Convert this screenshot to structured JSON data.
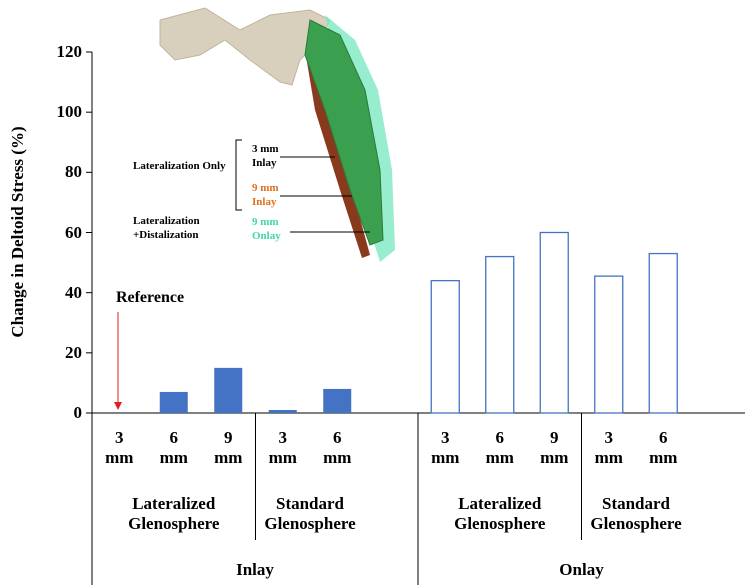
{
  "chart_data": {
    "type": "bar",
    "ylabel": "Change in Deltoid Stress (%)",
    "ylim": [
      0,
      120
    ],
    "yticks": [
      0,
      20,
      40,
      60,
      80,
      100,
      120
    ],
    "groups": [
      {
        "name": "Inlay",
        "style": "filled",
        "color": "#4472c4",
        "subgroups": [
          {
            "name": "Lateralized Glenosphere",
            "categories": [
              "3 mm",
              "6 mm",
              "9 mm"
            ],
            "values": [
              0,
              7,
              15
            ]
          },
          {
            "name": "Standard Glenosphere",
            "categories": [
              "3 mm",
              "6 mm"
            ],
            "values": [
              1,
              8
            ]
          }
        ]
      },
      {
        "name": "Onlay",
        "style": "outline",
        "color": "#4472c4",
        "subgroups": [
          {
            "name": "Lateralized Glenosphere",
            "categories": [
              "3 mm",
              "6 mm",
              "9 mm"
            ],
            "values": [
              44,
              52,
              60
            ]
          },
          {
            "name": "Standard Glenosphere",
            "categories": [
              "3 mm",
              "6 mm"
            ],
            "values": [
              45.5,
              53
            ]
          }
        ]
      }
    ],
    "annotation": "Reference",
    "figure_labels": [
      {
        "text": "Lateralization Only",
        "color": "#000000"
      },
      {
        "text": "3 mm Inlay",
        "color": "#000000"
      },
      {
        "text": "9 mm Inlay",
        "color": "#e07020"
      },
      {
        "text": "Lateralization +Distalization",
        "color": "#000000"
      },
      {
        "text": "9 mm Onlay",
        "color": "#40d8a0"
      }
    ]
  }
}
